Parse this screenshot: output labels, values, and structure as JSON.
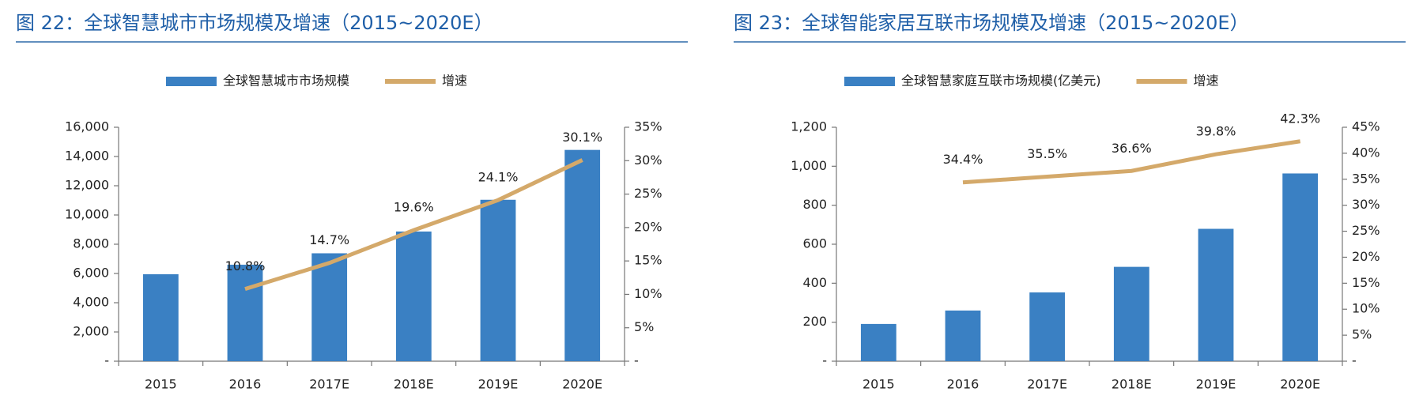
{
  "chart_data": [
    {
      "type": "combo",
      "title": "图 22：全球智慧城市市场规模及增速（2015~2020E）",
      "categories": [
        "2015",
        "2016",
        "2017E",
        "2018E",
        "2019E",
        "2020E"
      ],
      "series": [
        {
          "name": "全球智慧城市市场规模",
          "color": "#3a80c3",
          "values": [
            5950,
            6600,
            7380,
            8870,
            11040,
            14450
          ]
        },
        {
          "name": "增速",
          "color": "#d4a96a",
          "axis": "y2",
          "values": [
            null,
            10.8,
            14.7,
            19.6,
            24.1,
            30.1
          ],
          "value_labels": [
            null,
            "10.8%",
            "14.7%",
            "19.6%",
            "24.1%",
            "30.1%"
          ]
        }
      ],
      "ylim": [
        0,
        16000
      ],
      "yticks": [
        {
          "value": 0,
          "label": "-"
        },
        {
          "value": 2000,
          "label": "2,000"
        },
        {
          "value": 4000,
          "label": "4,000"
        },
        {
          "value": 6000,
          "label": "6,000"
        },
        {
          "value": 8000,
          "label": "8,000"
        },
        {
          "value": 10000,
          "label": "10,000"
        },
        {
          "value": 12000,
          "label": "12,000"
        },
        {
          "value": 14000,
          "label": "14,000"
        },
        {
          "value": 16000,
          "label": "16,000"
        }
      ],
      "y2lim": [
        0,
        35
      ],
      "y2ticks": [
        {
          "value": 0,
          "label": "-"
        },
        {
          "value": 5,
          "label": "5%"
        },
        {
          "value": 10,
          "label": "10%"
        },
        {
          "value": 15,
          "label": "15%"
        },
        {
          "value": 20,
          "label": "20%"
        },
        {
          "value": 25,
          "label": "25%"
        },
        {
          "value": 30,
          "label": "30%"
        },
        {
          "value": 35,
          "label": "35%"
        }
      ]
    },
    {
      "type": "combo",
      "title": "图 23：全球智能家居互联市场规模及增速（2015~2020E）",
      "categories": [
        "2015",
        "2016",
        "2017E",
        "2018E",
        "2019E",
        "2020E"
      ],
      "series": [
        {
          "name": "全球智慧家庭互联市场规模(亿美元)",
          "color": "#3a80c3",
          "values": [
            191,
            260,
            353,
            484,
            679,
            963
          ]
        },
        {
          "name": "增速",
          "color": "#d4a96a",
          "axis": "y2",
          "values": [
            null,
            34.4,
            35.5,
            36.6,
            39.8,
            42.3
          ],
          "value_labels": [
            null,
            "34.4%",
            "35.5%",
            "36.6%",
            "39.8%",
            "42.3%"
          ]
        }
      ],
      "ylim": [
        0,
        1200
      ],
      "yticks": [
        {
          "value": 0,
          "label": "-"
        },
        200,
        400,
        600,
        800,
        {
          "value": 1000,
          "label": "1,000"
        },
        {
          "value": 1200,
          "label": "1,200"
        }
      ],
      "y2lim": [
        0,
        45
      ],
      "y2ticks": [
        {
          "value": 0,
          "label": "-"
        },
        {
          "value": 5,
          "label": "5%"
        },
        {
          "value": 10,
          "label": "10%"
        },
        {
          "value": 15,
          "label": "15%"
        },
        {
          "value": 20,
          "label": "20%"
        },
        {
          "value": 25,
          "label": "25%"
        },
        {
          "value": 30,
          "label": "30%"
        },
        {
          "value": 35,
          "label": "35%"
        },
        {
          "value": 40,
          "label": "40%"
        },
        {
          "value": 45,
          "label": "45%"
        }
      ]
    }
  ]
}
